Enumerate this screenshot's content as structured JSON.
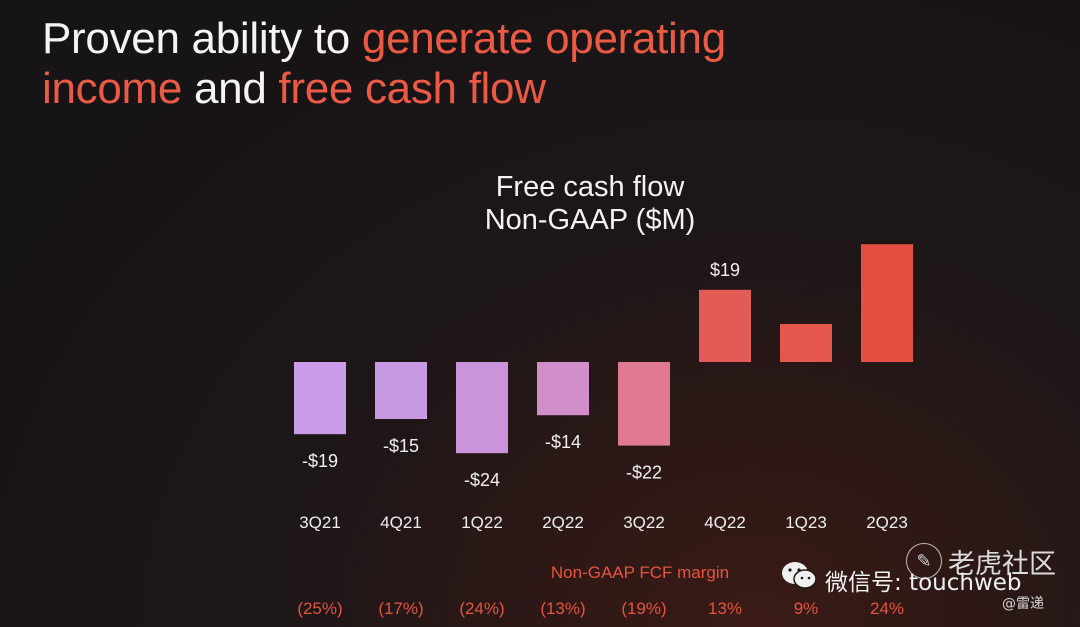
{
  "headline": {
    "part1": "Proven ability to ",
    "part2": "generate operating",
    "part3": "income",
    "part4": " and ",
    "part5": "free cash flow"
  },
  "chart_data": {
    "type": "bar",
    "title": "Free cash flow",
    "subtitle": "Non-GAAP ($M)",
    "categories": [
      "3Q21",
      "4Q21",
      "1Q22",
      "2Q22",
      "3Q22",
      "4Q22",
      "1Q23",
      "2Q23"
    ],
    "values": [
      -19,
      -15,
      -24,
      -14,
      -22,
      19,
      10,
      31
    ],
    "value_labels": [
      "-$19",
      "-$15",
      "-$24",
      "-$14",
      "-$22",
      "$19",
      "",
      ""
    ],
    "bar_colors": [
      "#c99be8",
      "#c89ae3",
      "#cb93d9",
      "#d28ec9",
      "#e07a92",
      "#e35b57",
      "#e5574d",
      "#e44f41"
    ],
    "margin_title": "Non-GAAP FCF margin",
    "margins": [
      "(25%)",
      "(17%)",
      "(24%)",
      "(13%)",
      "(19%)",
      "13%",
      "9%",
      "24%"
    ],
    "margin_color": "#e5533f"
  },
  "watermark": {
    "circle_glyph": "✎",
    "brand": "老虎社区",
    "wechat": "微信号: touchweb",
    "sub": "@雷递"
  }
}
